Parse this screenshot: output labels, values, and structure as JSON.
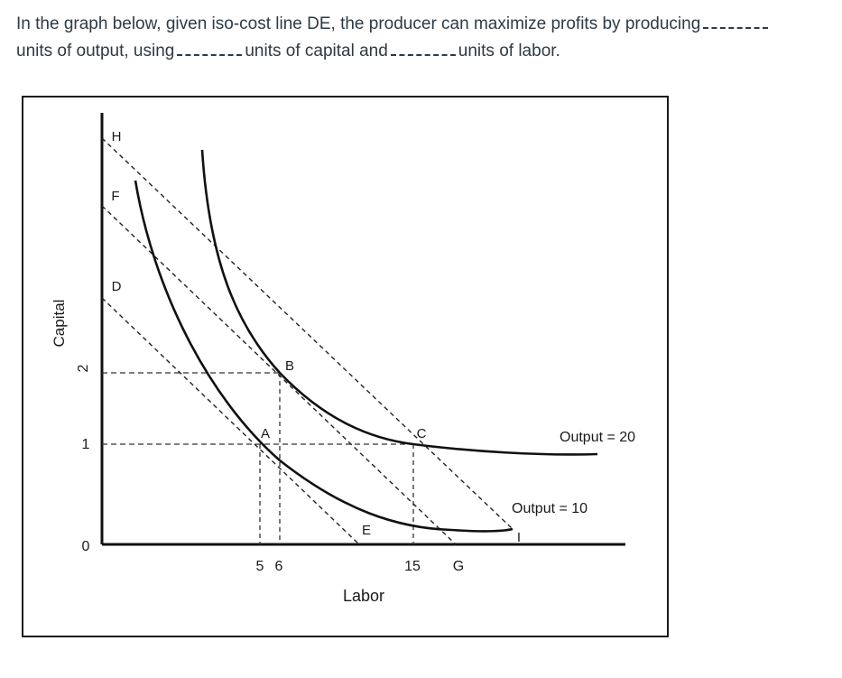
{
  "question": {
    "part1": "In the graph below, given iso-cost line DE, the producer can maximize profits by producing",
    "part2": "units of output, using",
    "part3": "units of capital and",
    "part4": "units of labor."
  },
  "graph": {
    "y_axis_label": "Capital",
    "x_axis_label": "Labor",
    "y_ticks": [
      "2",
      "1",
      "0"
    ],
    "x_ticks": [
      "5",
      "6",
      "15"
    ],
    "points": {
      "H": "H",
      "F": "F",
      "D": "D",
      "B": "B",
      "A": "A",
      "C": "C",
      "E": "E",
      "G": "G",
      "I": "I"
    },
    "curve_labels": {
      "upper": "Output = 20",
      "lower": "Output = 10"
    }
  }
}
